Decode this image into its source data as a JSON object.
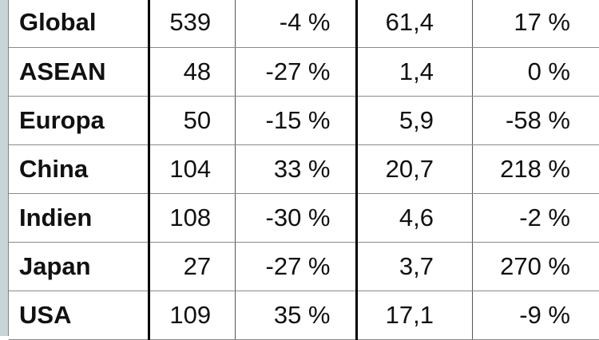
{
  "table": {
    "rows": [
      {
        "region": "Global",
        "v1": "539",
        "c1": "-4 %",
        "v2": "61,4",
        "c2": "17 %"
      },
      {
        "region": "ASEAN",
        "v1": "48",
        "c1": "-27 %",
        "v2": "1,4",
        "c2": "0 %"
      },
      {
        "region": "Europa",
        "v1": "50",
        "c1": "-15 %",
        "v2": "5,9",
        "c2": "-58 %"
      },
      {
        "region": "China",
        "v1": "104",
        "c1": "33 %",
        "v2": "20,7",
        "c2": "218 %"
      },
      {
        "region": "Indien",
        "v1": "108",
        "c1": "-30 %",
        "v2": "4,6",
        "c2": "-2 %"
      },
      {
        "region": "Japan",
        "v1": "27",
        "c1": "-27 %",
        "v2": "3,7",
        "c2": "270 %"
      },
      {
        "region": "USA",
        "v1": "109",
        "c1": "35 %",
        "v2": "17,1",
        "c2": "-9 %"
      }
    ]
  }
}
